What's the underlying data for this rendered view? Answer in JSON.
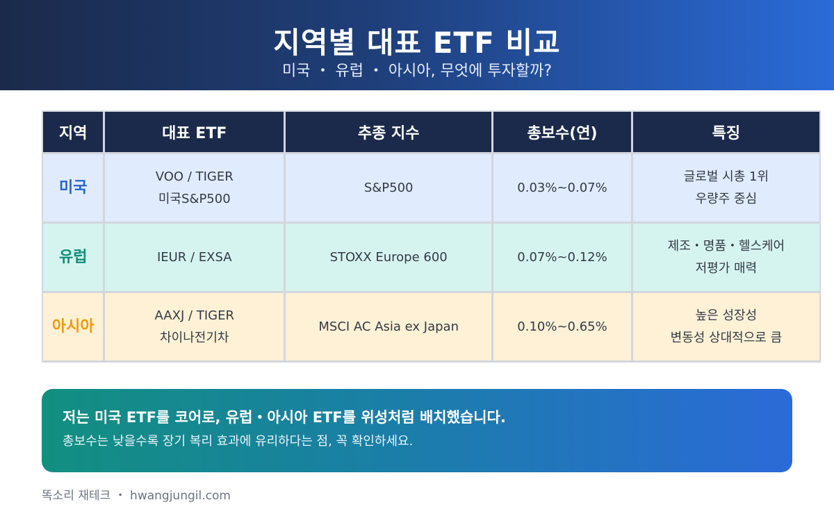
{
  "header": {
    "title": "지역별 대표 ETF 비교",
    "subtitle": "미국 ・ 유럽 ・ 아시아, 무엇에 투자할까?"
  },
  "table": {
    "columns": [
      "지역",
      "대표 ETF",
      "추종 지수",
      "총보수(연)",
      "특징"
    ],
    "rows": [
      {
        "region": "미국",
        "etf": [
          "VOO / TIGER",
          "미국S&P500"
        ],
        "index": "S&P500",
        "fee": "0.03%~0.07%",
        "feature": [
          "글로벌 시총 1위",
          "우량주 중심"
        ]
      },
      {
        "region": "유럽",
        "etf": [
          "IEUR / EXSA"
        ],
        "index": "STOXX Europe 600",
        "fee": "0.07%~0.12%",
        "feature": [
          "제조・명품・헬스케어",
          "저평가 매력"
        ]
      },
      {
        "region": "아시아",
        "etf": [
          "AAXJ / TIGER",
          "차이나전기차"
        ],
        "index": "MSCI AC Asia ex Japan",
        "fee": "0.10%~0.65%",
        "feature": [
          "높은 성장성",
          "변동성 상대적으로 큼"
        ]
      }
    ]
  },
  "callout": {
    "main": "저는 미국 ETF를 코어로, 유럽・아시아 ETF를 위성처럼 배치했습니다.",
    "sub": "총보수는 낮을수록 장기 복리 효과에 유리하다는 점, 꼭 확인하세요."
  },
  "footer": {
    "text": "똑소리 재테크 ・ hwangjungil.com"
  },
  "colors": {
    "header_start": "#1b2a4a",
    "header_end": "#2a6bd8",
    "us_bg": "#e0ebfd",
    "us_text": "#2563c9",
    "eu_bg": "#d6f4ef",
    "eu_text": "#0e8f78",
    "asia_bg": "#fef1d6",
    "asia_text": "#f09a0a"
  }
}
